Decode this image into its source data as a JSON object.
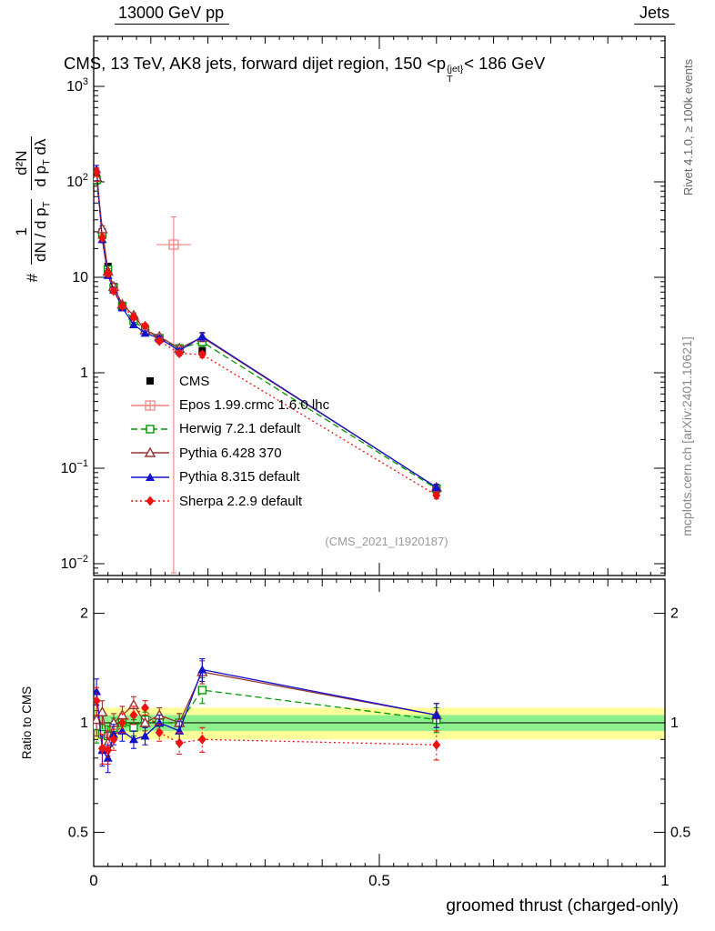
{
  "header": {
    "left": "13000 GeV pp",
    "right": "Jets"
  },
  "title": {
    "prefix": "CMS, 13 TeV, AK8 jets, forward dijet region, 150 <p",
    "sup": "{jet}",
    "sub": "T",
    "suffix": "< 186 GeV"
  },
  "ylabel_main": {
    "hash": "#",
    "frac1_num": "1",
    "frac1_den_a": "dN / d p",
    "frac1_den_sub": "T",
    "frac2_num": "d²N",
    "frac2_den_a": "d p",
    "frac2_den_sub": "T",
    "frac2_den_b": " dλ"
  },
  "labels": {
    "xlabel": "groomed thrust (charged-only)",
    "ratio_ylabel": "Ratio to CMS",
    "rivet": "Rivet 4.1.0, ≥ 100k events",
    "mcplots": "mcplots.cern.ch [arXiv:2401.10621]",
    "watermark": "(CMS_2021_I1920187)"
  },
  "chart_data": {
    "type": "line",
    "title": "CMS, 13 TeV, AK8 jets, forward dijet region, 150 <pT{jet}< 186 GeV",
    "xlabel": "groomed thrust (charged-only)",
    "ylabel": "# 1/(dN/dpT) d2N/(dpT dlambda)",
    "ratio_ylabel": "Ratio to CMS",
    "xlim": [
      0,
      1
    ],
    "ylim_main": [
      0.0075,
      3300
    ],
    "ylim_ratio": [
      0.4,
      2.5
    ],
    "yscale": "log",
    "x": [
      0.005,
      0.015,
      0.025,
      0.035,
      0.05,
      0.07,
      0.09,
      0.115,
      0.15,
      0.19,
      0.6
    ],
    "series": [
      {
        "name": "CMS",
        "color": "#000000",
        "marker": "square",
        "line": "none",
        "values": [
          110,
          30,
          13,
          8.0,
          5.0,
          3.6,
          2.8,
          2.3,
          1.8,
          1.7,
          0.06
        ],
        "rel_err": [
          0.06,
          0.05,
          0.05,
          0.05,
          0.05,
          0.05,
          0.05,
          0.05,
          0.06,
          0.06,
          0.1
        ]
      },
      {
        "name": "Epos 1.99.crmc 1.6.0 lhc",
        "color": "#f08080",
        "marker": "cross-square",
        "line": "solid",
        "point": {
          "x": 0.14,
          "y": 22,
          "ylo": 0.008,
          "yhi": 43,
          "xerr": 0.03
        }
      },
      {
        "name": "Herwig 7.2.1 default",
        "color": "#009900",
        "marker": "square-open",
        "line": "dashed",
        "values": [
          105,
          28,
          12,
          7.8,
          5.0,
          3.5,
          2.85,
          2.3,
          1.8,
          2.1,
          0.061
        ],
        "rel_err": [
          0.1,
          0.07,
          0.06,
          0.06,
          0.06,
          0.05,
          0.05,
          0.05,
          0.06,
          0.1,
          0.08
        ],
        "ratio": [
          0.98,
          0.93,
          0.92,
          0.97,
          1.0,
          0.97,
          1.02,
          1.0,
          1.0,
          1.23,
          1.02
        ],
        "ratio_err": [
          0.1,
          0.07,
          0.06,
          0.06,
          0.06,
          0.05,
          0.05,
          0.05,
          0.06,
          0.1,
          0.08
        ]
      },
      {
        "name": "Pythia 6.428 370",
        "color": "#993333",
        "marker": "triangle-open",
        "line": "solid",
        "values": [
          112,
          32,
          11.5,
          8.0,
          5.2,
          4.0,
          2.8,
          2.4,
          1.8,
          2.35,
          0.063
        ],
        "rel_err": [
          0.1,
          0.08,
          0.07,
          0.06,
          0.06,
          0.06,
          0.05,
          0.05,
          0.06,
          0.1,
          0.08
        ],
        "ratio": [
          1.02,
          1.07,
          0.88,
          1.0,
          1.05,
          1.12,
          1.0,
          1.05,
          1.0,
          1.38,
          1.05
        ],
        "ratio_err": [
          0.1,
          0.08,
          0.07,
          0.06,
          0.06,
          0.06,
          0.05,
          0.05,
          0.06,
          0.1,
          0.08
        ]
      },
      {
        "name": "Pythia 8.315 default",
        "color": "#1111cc",
        "marker": "triangle",
        "line": "solid",
        "values": [
          135,
          25,
          10.5,
          7.4,
          4.8,
          3.2,
          2.6,
          2.3,
          1.7,
          2.4,
          0.063
        ],
        "rel_err": [
          0.1,
          0.08,
          0.07,
          0.06,
          0.06,
          0.05,
          0.05,
          0.05,
          0.06,
          0.1,
          0.08
        ],
        "ratio": [
          1.22,
          0.84,
          0.8,
          0.93,
          0.95,
          0.9,
          0.92,
          1.0,
          0.95,
          1.4,
          1.05
        ],
        "ratio_err": [
          0.1,
          0.08,
          0.07,
          0.06,
          0.06,
          0.05,
          0.05,
          0.05,
          0.06,
          0.1,
          0.08
        ]
      },
      {
        "name": "Sherpa 2.2.9 default",
        "color": "#ee1111",
        "marker": "diamond",
        "line": "dotted",
        "values": [
          127,
          26,
          11,
          7.2,
          5.0,
          3.8,
          3.1,
          2.15,
          1.6,
          1.55,
          0.052
        ],
        "rel_err": [
          0.1,
          0.08,
          0.07,
          0.06,
          0.06,
          0.06,
          0.05,
          0.05,
          0.06,
          0.07,
          0.08
        ],
        "ratio": [
          1.15,
          0.85,
          0.84,
          0.9,
          1.0,
          1.05,
          1.1,
          0.94,
          0.88,
          0.9,
          0.87
        ],
        "ratio_err": [
          0.1,
          0.08,
          0.07,
          0.06,
          0.06,
          0.06,
          0.05,
          0.05,
          0.06,
          0.07,
          0.08
        ]
      }
    ],
    "bands": {
      "yellow": [
        0.9,
        1.1
      ],
      "green": [
        0.95,
        1.05
      ],
      "yellow_color": "#ffff99",
      "green_color": "#8df08d"
    },
    "yticks_main": [
      {
        "v": 1000,
        "base": "10",
        "exp": "3"
      },
      {
        "v": 100,
        "base": "10",
        "exp": "2"
      },
      {
        "v": 10,
        "base": "10",
        "exp": ""
      },
      {
        "v": 1,
        "base": "1",
        "exp": ""
      },
      {
        "v": 0.1,
        "base": "10",
        "exp": "−1"
      },
      {
        "v": 0.01,
        "base": "10",
        "exp": "−2"
      }
    ],
    "yticks_ratio": [
      {
        "v": 2,
        "label": "2"
      },
      {
        "v": 1,
        "label": "1"
      },
      {
        "v": 0.5,
        "label": "0.5"
      }
    ],
    "xticks": [
      {
        "v": 0,
        "label": "0"
      },
      {
        "v": 0.5,
        "label": "0.5"
      },
      {
        "v": 1,
        "label": "1"
      }
    ]
  }
}
